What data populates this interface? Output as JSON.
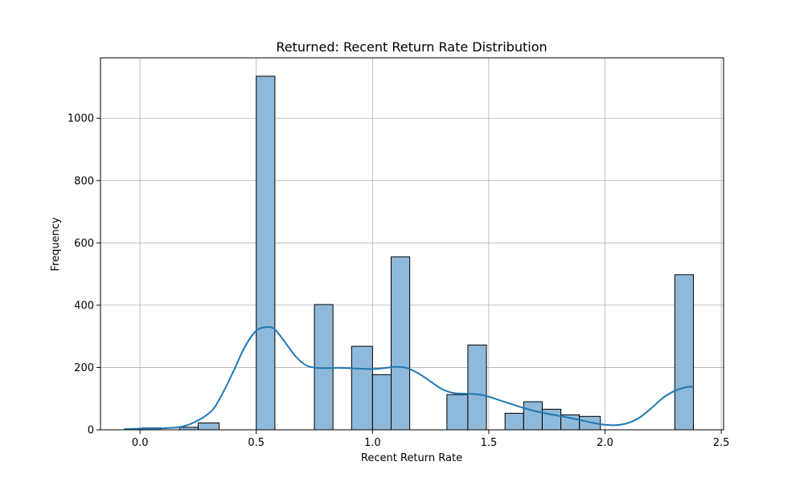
{
  "chart_data": {
    "type": "bar",
    "subtype": "histogram-with-kde",
    "title": "Returned: Recent Return Rate Distribution",
    "xlabel": "Recent Return Rate",
    "ylabel": "Frequency",
    "xlim": [
      -0.17,
      2.51
    ],
    "ylim": [
      0,
      1194
    ],
    "x_ticks": [
      0.0,
      0.5,
      1.0,
      1.5,
      2.0,
      2.5
    ],
    "x_tick_labels": [
      "0.0",
      "0.5",
      "1.0",
      "1.5",
      "2.0",
      "2.5"
    ],
    "y_ticks": [
      0,
      200,
      400,
      600,
      800,
      1000
    ],
    "y_tick_labels": [
      "0",
      "200",
      "400",
      "600",
      "800",
      "1000"
    ],
    "grid": true,
    "bar_color": "#8fb9da",
    "bar_edge_color": "#000000",
    "kde_color": "#1f77b4",
    "bins": [
      {
        "x0": 0.01,
        "x1": 0.09,
        "count": 6
      },
      {
        "x0": 0.17,
        "x1": 0.25,
        "count": 8
      },
      {
        "x0": 0.25,
        "x1": 0.34,
        "count": 22
      },
      {
        "x0": 0.5,
        "x1": 0.58,
        "count": 1135
      },
      {
        "x0": 0.75,
        "x1": 0.83,
        "count": 402
      },
      {
        "x0": 0.91,
        "x1": 1.0,
        "count": 268
      },
      {
        "x0": 1.0,
        "x1": 1.08,
        "count": 177
      },
      {
        "x0": 1.08,
        "x1": 1.16,
        "count": 555
      },
      {
        "x0": 1.32,
        "x1": 1.41,
        "count": 113
      },
      {
        "x0": 1.41,
        "x1": 1.49,
        "count": 272
      },
      {
        "x0": 1.57,
        "x1": 1.65,
        "count": 53
      },
      {
        "x0": 1.65,
        "x1": 1.73,
        "count": 90
      },
      {
        "x0": 1.73,
        "x1": 1.81,
        "count": 66
      },
      {
        "x0": 1.81,
        "x1": 1.89,
        "count": 48
      },
      {
        "x0": 1.89,
        "x1": 1.98,
        "count": 43
      },
      {
        "x0": 2.3,
        "x1": 2.38,
        "count": 498
      }
    ],
    "kde": {
      "x": [
        -0.07,
        0.0,
        0.1,
        0.2,
        0.3,
        0.35,
        0.4,
        0.45,
        0.5,
        0.55,
        0.58,
        0.62,
        0.67,
        0.72,
        0.78,
        0.85,
        0.92,
        1.0,
        1.05,
        1.1,
        1.15,
        1.2,
        1.25,
        1.3,
        1.35,
        1.4,
        1.45,
        1.5,
        1.55,
        1.6,
        1.65,
        1.7,
        1.75,
        1.8,
        1.85,
        1.9,
        1.95,
        2.0,
        2.05,
        2.1,
        2.15,
        2.2,
        2.25,
        2.3,
        2.35,
        2.38
      ],
      "y": [
        2,
        4,
        5,
        14,
        55,
        110,
        185,
        265,
        318,
        330,
        322,
        285,
        235,
        205,
        198,
        199,
        197,
        195,
        198,
        202,
        198,
        180,
        155,
        130,
        118,
        116,
        114,
        106,
        94,
        82,
        70,
        60,
        52,
        45,
        38,
        30,
        22,
        16,
        15,
        22,
        40,
        70,
        103,
        125,
        137,
        138
      ]
    }
  }
}
